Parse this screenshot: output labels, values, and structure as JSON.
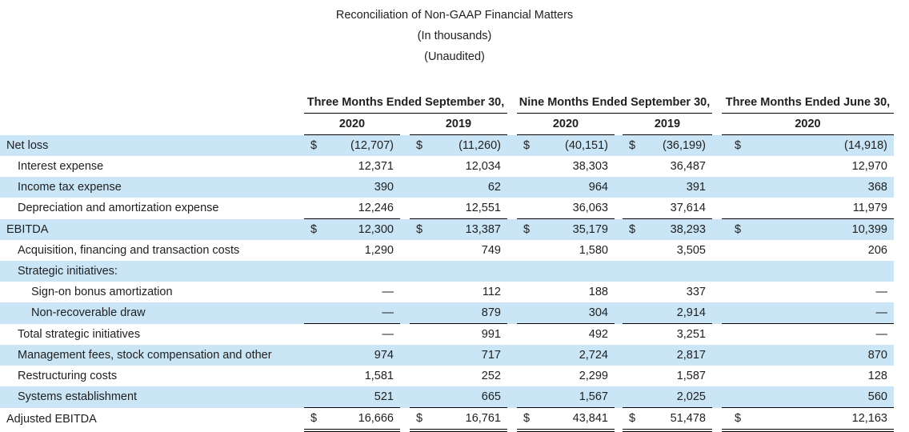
{
  "title": {
    "line1": "Reconciliation of Non-GAAP Financial Matters",
    "line2": "(In thousands)",
    "line3": "(Unaudited)"
  },
  "colors": {
    "row_highlight": "#c9e5f6",
    "text": "#212121",
    "rule": "#000000"
  },
  "table": {
    "column_groups": [
      {
        "label": "Three Months Ended September 30,",
        "years": [
          "2020",
          "2019"
        ]
      },
      {
        "label": "Nine Months Ended September 30,",
        "years": [
          "2020",
          "2019"
        ]
      },
      {
        "label": "Three Months Ended June 30,",
        "years": [
          "2020"
        ]
      }
    ],
    "rows": [
      {
        "label": "Net loss",
        "indent": 0,
        "highlight": true,
        "dollar": true,
        "border_top": false,
        "values": [
          "(12,707)",
          "(11,260)",
          "(40,151)",
          "(36,199)",
          "(14,918)"
        ]
      },
      {
        "label": "Interest expense",
        "indent": 1,
        "highlight": false,
        "dollar": false,
        "values": [
          "12,371",
          "12,034",
          "38,303",
          "36,487",
          "12,970"
        ]
      },
      {
        "label": "Income tax expense",
        "indent": 1,
        "highlight": true,
        "dollar": false,
        "values": [
          "390",
          "62",
          "964",
          "391",
          "368"
        ]
      },
      {
        "label": "Depreciation and amortization expense",
        "indent": 1,
        "highlight": false,
        "dollar": false,
        "values": [
          "12,246",
          "12,551",
          "36,063",
          "37,614",
          "11,979"
        ]
      },
      {
        "label": "EBITDA",
        "indent": 0,
        "highlight": true,
        "dollar": true,
        "border_top": true,
        "values": [
          "12,300",
          "13,387",
          "35,179",
          "38,293",
          "10,399"
        ]
      },
      {
        "label": "Acquisition, financing and transaction costs",
        "indent": 1,
        "highlight": false,
        "dollar": false,
        "values": [
          "1,290",
          "749",
          "1,580",
          "3,505",
          "206"
        ]
      },
      {
        "label": "Strategic initiatives:",
        "indent": 1,
        "highlight": true,
        "dollar": false,
        "values": [
          "",
          "",
          "",
          "",
          ""
        ]
      },
      {
        "label": "Sign-on bonus amortization",
        "indent": 2,
        "highlight": false,
        "dollar": false,
        "values": [
          "—",
          "112",
          "188",
          "337",
          "—"
        ]
      },
      {
        "label": "Non-recoverable draw",
        "indent": 2,
        "highlight": true,
        "dollar": false,
        "values": [
          "—",
          "879",
          "304",
          "2,914",
          "—"
        ]
      },
      {
        "label": "Total strategic initiatives",
        "indent": 1,
        "highlight": false,
        "dollar": false,
        "border_top": true,
        "values": [
          "—",
          "991",
          "492",
          "3,251",
          "—"
        ]
      },
      {
        "label": "Management fees, stock compensation and other",
        "indent": 1,
        "highlight": true,
        "dollar": false,
        "values": [
          "974",
          "717",
          "2,724",
          "2,817",
          "870"
        ]
      },
      {
        "label": "Restructuring costs",
        "indent": 1,
        "highlight": false,
        "dollar": false,
        "values": [
          "1,581",
          "252",
          "2,299",
          "1,587",
          "128"
        ]
      },
      {
        "label": "Systems establishment",
        "indent": 1,
        "highlight": true,
        "dollar": false,
        "values": [
          "521",
          "665",
          "1,567",
          "2,025",
          "560"
        ]
      },
      {
        "label": "Adjusted EBITDA",
        "indent": 0,
        "highlight": false,
        "dollar": true,
        "border_top": true,
        "border_bottom_double": true,
        "values": [
          "16,666",
          "16,761",
          "43,841",
          "51,478",
          "12,163"
        ]
      }
    ],
    "dollar_sign": "$"
  }
}
